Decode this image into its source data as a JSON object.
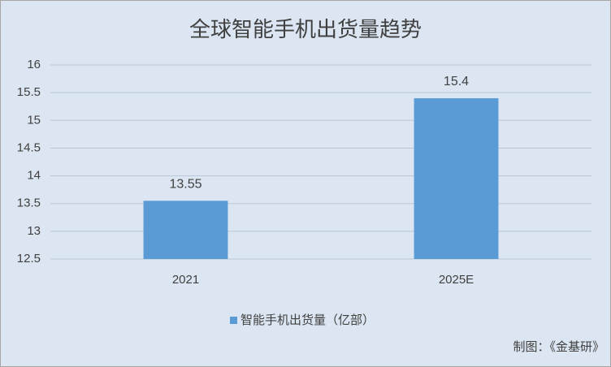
{
  "chart_data": {
    "type": "bar",
    "title": "全球智能手机出货量趋势",
    "categories": [
      "2021",
      "2025E"
    ],
    "series": [
      {
        "name": "智能手机出货量（亿部）",
        "color": "#5b9bd5",
        "values": [
          13.55,
          15.4
        ]
      }
    ],
    "ylim": [
      12.5,
      16
    ],
    "yticks": [
      12.5,
      13,
      13.5,
      14,
      14.5,
      15,
      15.5,
      16
    ],
    "grid": true,
    "legend": "bottom",
    "source": "制图：《金基研》"
  }
}
